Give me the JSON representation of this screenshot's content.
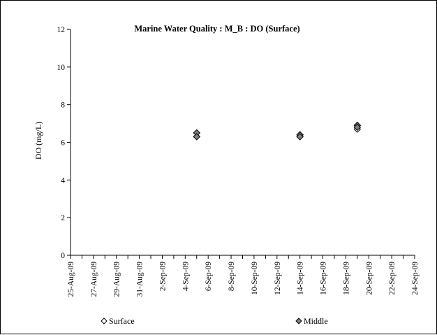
{
  "chart_data": {
    "type": "scatter",
    "title": "Marine Water Quality : M_B : DO (Surface)",
    "xlabel": "",
    "ylabel": "DO (mg/L)",
    "ylim": [
      0,
      12
    ],
    "xlim": [
      "2009-08-25",
      "2009-09-24"
    ],
    "yticks": [
      "0",
      "2",
      "4",
      "6",
      "8",
      "10",
      "12"
    ],
    "xticks": [
      "25-Aug-09",
      "27-Aug-09",
      "29-Aug-09",
      "31-Aug-09",
      "2-Sep-09",
      "4-Sep-09",
      "6-Sep-09",
      "8-Sep-09",
      "10-Sep-09",
      "12-Sep-09",
      "14-Sep-09",
      "16-Sep-09",
      "18-Sep-09",
      "20-Sep-09",
      "22-Sep-09",
      "24-Sep-09"
    ],
    "grid": false,
    "legend_position": "bottom",
    "series": [
      {
        "name": "Surface",
        "marker": "diamond-open",
        "color": "#ffffff",
        "points": [
          {
            "x": "2009-09-05",
            "y": 6.5
          },
          {
            "x": "2009-09-05",
            "y": 6.3
          },
          {
            "x": "2009-09-14",
            "y": 6.4
          },
          {
            "x": "2009-09-14",
            "y": 6.3
          },
          {
            "x": "2009-09-19",
            "y": 6.9
          },
          {
            "x": "2009-09-19",
            "y": 6.7
          }
        ]
      },
      {
        "name": "Middle",
        "marker": "diamond-filled",
        "color": "#808080",
        "points": [
          {
            "x": "2009-09-05",
            "y": 6.5
          },
          {
            "x": "2009-09-05",
            "y": 6.3
          },
          {
            "x": "2009-09-14",
            "y": 6.4
          },
          {
            "x": "2009-09-14",
            "y": 6.3
          },
          {
            "x": "2009-09-19",
            "y": 6.9
          },
          {
            "x": "2009-09-19",
            "y": 6.8
          }
        ]
      }
    ]
  }
}
